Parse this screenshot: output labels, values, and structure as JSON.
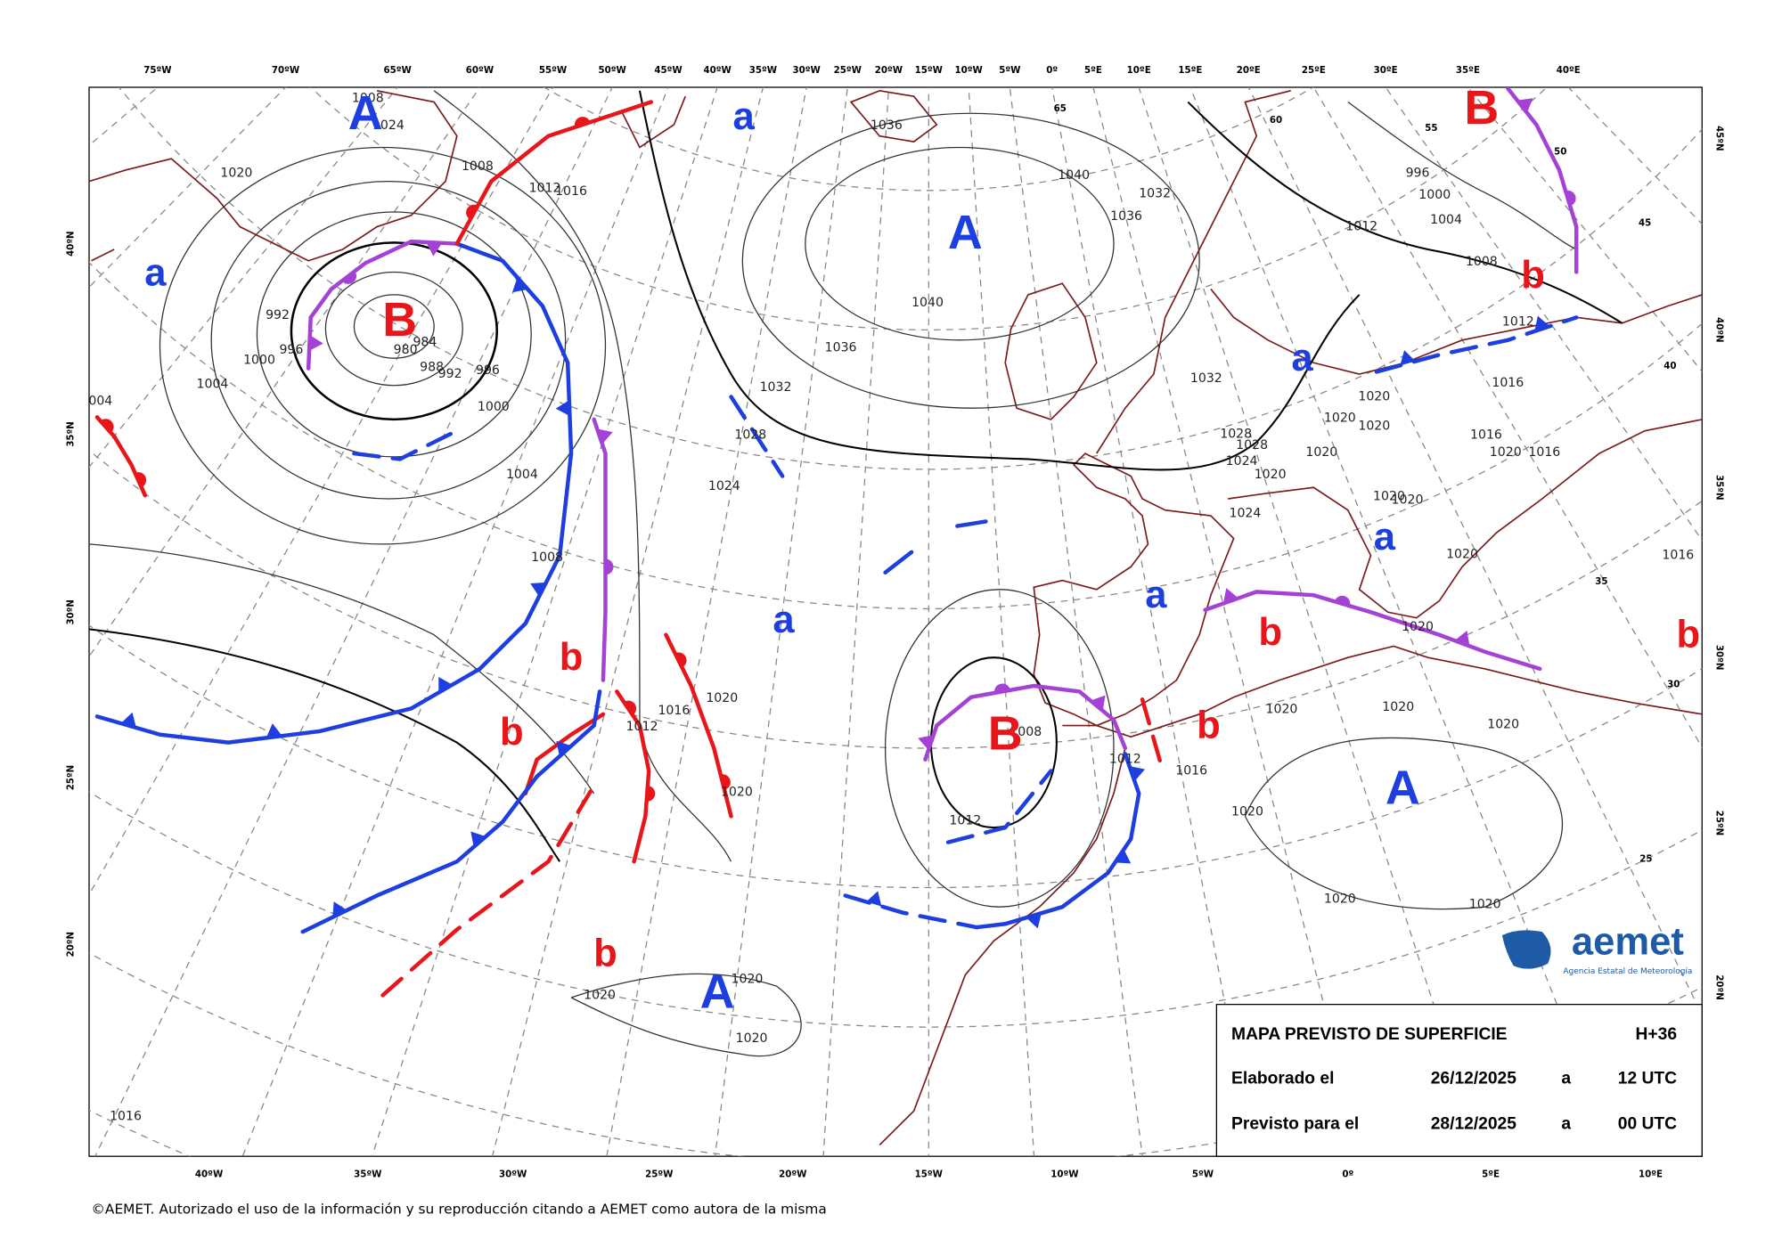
{
  "top_axis": [
    "75ºW",
    "70ºW",
    "65ºW",
    "60ºW",
    "55ºW",
    "50ºW",
    "45ºW",
    "40ºW",
    "35ºW",
    "30ºW",
    "25ºW",
    "20ºW",
    "15ºW",
    "10ºW",
    "5ºW",
    "0º",
    "5ºE",
    "10ºE",
    "15ºE",
    "20ºE",
    "25ºE",
    "30ºE",
    "35ºE",
    "40ºE"
  ],
  "bottom_axis": [
    "40ºW",
    "35ºW",
    "30ºW",
    "25ºW",
    "20ºW",
    "15ºW",
    "10ºW",
    "5ºW",
    "0º",
    "5ºE",
    "10ºE"
  ],
  "left_axis": [
    "40ºN",
    "35ºN",
    "30ºN",
    "25ºN",
    "20ºN"
  ],
  "right_axis": [
    "45ºN",
    "40ºN",
    "35ºN",
    "30ºN",
    "25ºN",
    "20ºN"
  ],
  "pressure_centers": [
    "A",
    "A",
    "B",
    "B",
    "a",
    "a",
    "a",
    "a",
    "a",
    "a",
    "b",
    "b",
    "b",
    "b",
    "b",
    "b",
    "b",
    "A",
    "B",
    "A"
  ],
  "isobar_labels": [
    "1008",
    "1024",
    "1020",
    "1008",
    "1012",
    "1016",
    "992",
    "996",
    "980",
    "984",
    "988",
    "992",
    "996",
    "1000",
    "1004",
    "1000",
    "1004",
    "1008",
    "1036",
    "1040",
    "1032",
    "1036",
    "1040",
    "1036",
    "1032",
    "1028",
    "1024",
    "1012",
    "1016",
    "1020",
    "1020",
    "1008",
    "1012",
    "1012",
    "1016",
    "1020",
    "1020",
    "1020",
    "1020",
    "1020",
    "1020",
    "1020",
    "1020",
    "1020",
    "1016",
    "996",
    "1000",
    "1004",
    "1012",
    "1008",
    "1012",
    "1016",
    "1020",
    "1020",
    "1020",
    "1016",
    "1020",
    "1016",
    "1020",
    "1028",
    "1028",
    "1024",
    "1020",
    "1032",
    "1024",
    "1020",
    "1020",
    "1020",
    "1016",
    "1020",
    "004"
  ],
  "grid_labels": [
    "65",
    "60",
    "55",
    "50",
    "45",
    "40",
    "35",
    "30",
    "25"
  ],
  "info_box": {
    "title": "MAPA PREVISTO DE SUPERFICIE",
    "step": "H+36",
    "made_label": "Elaborado el",
    "made_date": "26/12/2025",
    "made_at": "a",
    "made_time": "12 UTC",
    "valid_label": "Previsto para el",
    "valid_date": "28/12/2025",
    "valid_at": "a",
    "valid_time": "00 UTC"
  },
  "logo": {
    "name": "aemet",
    "subtitle": "Agencia Estatal de Meteorología"
  },
  "copyright": "©AEMET. Autorizado el uso de la información y su reproducción citando a AEMET como autora de la misma"
}
